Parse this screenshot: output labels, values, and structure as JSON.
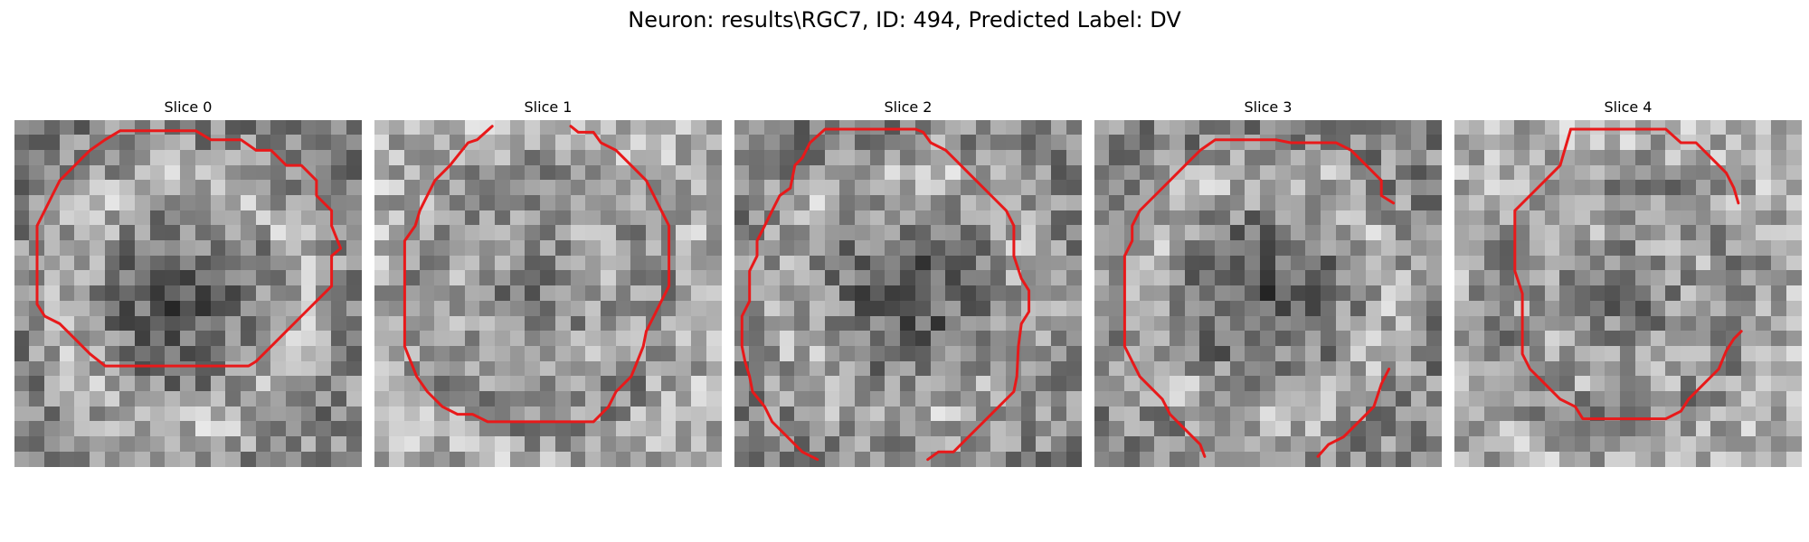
{
  "figure": {
    "title": "Neuron: results\\RGC7, ID: 494, Predicted Label: DV"
  },
  "contour_color": "#e8191a",
  "panels": [
    {
      "title": "Slice 0",
      "ring": "bright",
      "contours": [
        [
          [
            7,
            0.7
          ],
          [
            12,
            0.7
          ],
          [
            13,
            1.3
          ],
          [
            15,
            1.3
          ],
          [
            16,
            2.0
          ],
          [
            17,
            2.0
          ],
          [
            18,
            3.0
          ],
          [
            19,
            3.0
          ],
          [
            20,
            4.0
          ],
          [
            20,
            5.0
          ],
          [
            21,
            6.0
          ],
          [
            21,
            7.0
          ],
          [
            21.6,
            8.5
          ],
          [
            21,
            9.0
          ],
          [
            21,
            11.0
          ],
          [
            20,
            12.0
          ],
          [
            19,
            13.0
          ],
          [
            18,
            14.0
          ],
          [
            17,
            15.0
          ],
          [
            16,
            16.0
          ],
          [
            15.5,
            16.3
          ],
          [
            15,
            16.3
          ],
          [
            13,
            16.3
          ],
          [
            11,
            16.3
          ],
          [
            9,
            16.3
          ],
          [
            7,
            16.3
          ],
          [
            6,
            16.3
          ],
          [
            5,
            15.5
          ],
          [
            4,
            14.5
          ],
          [
            3,
            13.5
          ],
          [
            2,
            13.0
          ],
          [
            1.5,
            12.2
          ],
          [
            1.5,
            11.0
          ],
          [
            1.5,
            9.0
          ],
          [
            1.5,
            7.0
          ],
          [
            2,
            6.0
          ],
          [
            2.5,
            5.0
          ],
          [
            3,
            4.0
          ],
          [
            4,
            3.0
          ],
          [
            4.5,
            2.5
          ],
          [
            5,
            2.0
          ],
          [
            6,
            1.3
          ],
          [
            7,
            0.7
          ]
        ]
      ]
    },
    {
      "title": "Slice 1",
      "ring": "dark",
      "contours": [
        [
          [
            7.8,
            0.4
          ],
          [
            6.8,
            1.3
          ],
          [
            6.2,
            1.5
          ],
          [
            5,
            3.0
          ],
          [
            4,
            4.0
          ],
          [
            3.5,
            5.0
          ],
          [
            3,
            6.0
          ],
          [
            2.7,
            7.0
          ],
          [
            2,
            8.0
          ],
          [
            2,
            9.0
          ],
          [
            2,
            11.0
          ],
          [
            2,
            13.0
          ],
          [
            2,
            15.0
          ],
          [
            2.8,
            17.0
          ],
          [
            3.5,
            18.0
          ],
          [
            4.5,
            19.0
          ],
          [
            5.5,
            19.5
          ],
          [
            6.5,
            19.5
          ],
          [
            7.5,
            20.0
          ],
          [
            9,
            20.0
          ],
          [
            11,
            20.0
          ],
          [
            13,
            20.0
          ],
          [
            14.5,
            20.0
          ],
          [
            15.5,
            19.0
          ],
          [
            16,
            18.0
          ],
          [
            17,
            17.0
          ],
          [
            17.2,
            16.5
          ],
          [
            17.8,
            15.0
          ],
          [
            18,
            14.0
          ],
          [
            18.5,
            13.0
          ],
          [
            19,
            12.0
          ],
          [
            19.5,
            11.0
          ],
          [
            19.5,
            9.0
          ],
          [
            19.5,
            7.0
          ],
          [
            19,
            6.0
          ],
          [
            18.5,
            5.0
          ],
          [
            18,
            4.0
          ],
          [
            17,
            3.0
          ],
          [
            16,
            2.0
          ],
          [
            15,
            1.5
          ],
          [
            14.5,
            0.8
          ],
          [
            13.5,
            0.8
          ],
          [
            13,
            0.4
          ]
        ]
      ]
    },
    {
      "title": "Slice 2",
      "ring": "bright",
      "contours": [
        [
          [
            3.7,
            4.5
          ],
          [
            3,
            5.0
          ],
          [
            2.5,
            6.0
          ],
          [
            2,
            7.0
          ],
          [
            1.5,
            8.0
          ],
          [
            1.5,
            9.0
          ],
          [
            1,
            10.0
          ],
          [
            1,
            12.0
          ],
          [
            0.5,
            13.0
          ],
          [
            0.5,
            15.0
          ],
          [
            0.7,
            16.0
          ],
          [
            1,
            17.0
          ],
          [
            1.2,
            18.0
          ],
          [
            2,
            19.0
          ],
          [
            2.5,
            20.0
          ],
          [
            3.5,
            21.0
          ],
          [
            4.5,
            22.0
          ],
          [
            5.5,
            22.5
          ]
        ],
        [
          [
            12.8,
            22.5
          ],
          [
            13.5,
            22.0
          ],
          [
            14.5,
            22.0
          ],
          [
            15.5,
            21.0
          ],
          [
            16.5,
            20.0
          ],
          [
            17.5,
            19.0
          ],
          [
            18.5,
            18.0
          ],
          [
            18.7,
            17.0
          ],
          [
            18.8,
            15.0
          ],
          [
            19,
            13.5
          ],
          [
            19.5,
            12.7
          ],
          [
            19.5,
            11.3
          ],
          [
            19,
            10.5
          ],
          [
            18.5,
            9.0
          ],
          [
            18.5,
            7.0
          ],
          [
            18,
            6.0
          ],
          [
            17,
            5.0
          ],
          [
            16,
            4.0
          ],
          [
            15,
            3.0
          ],
          [
            14,
            2.0
          ],
          [
            13,
            1.5
          ],
          [
            12.5,
            0.8
          ],
          [
            12,
            0.6
          ],
          [
            10,
            0.6
          ],
          [
            8,
            0.6
          ],
          [
            6,
            0.6
          ],
          [
            5,
            1.5
          ],
          [
            4.5,
            2.5
          ],
          [
            4,
            3.0
          ],
          [
            3.7,
            4.5
          ]
        ]
      ]
    },
    {
      "title": "Slice 3",
      "ring": "bright",
      "contours": [
        [
          [
            19.8,
            5.5
          ],
          [
            19,
            5.0
          ],
          [
            19,
            4.0
          ],
          [
            18,
            3.0
          ],
          [
            17,
            2.0
          ],
          [
            16,
            1.5
          ],
          [
            15,
            1.5
          ],
          [
            14,
            1.5
          ],
          [
            13,
            1.5
          ],
          [
            12,
            1.3
          ],
          [
            10,
            1.3
          ],
          [
            8,
            1.3
          ],
          [
            7,
            2.0
          ],
          [
            6,
            3.0
          ],
          [
            5,
            4.0
          ],
          [
            4,
            5.0
          ],
          [
            3,
            6.0
          ],
          [
            2.5,
            7.0
          ],
          [
            2.5,
            8.0
          ],
          [
            2,
            9.0
          ],
          [
            2,
            11.0
          ],
          [
            2,
            13.0
          ],
          [
            2,
            15.0
          ],
          [
            2.5,
            16.0
          ],
          [
            3,
            17.0
          ],
          [
            3.5,
            17.5
          ],
          [
            4.5,
            18.5
          ],
          [
            5,
            19.5
          ],
          [
            6,
            20.5
          ],
          [
            7,
            21.5
          ],
          [
            7.3,
            22.3
          ]
        ],
        [
          [
            14.8,
            22.3
          ],
          [
            15.5,
            21.5
          ],
          [
            16.5,
            21.0
          ],
          [
            17.5,
            20.0
          ],
          [
            18.5,
            19.0
          ],
          [
            19,
            17.5
          ],
          [
            19.5,
            16.5
          ]
        ]
      ]
    },
    {
      "title": "Slice 4",
      "ring": "dark",
      "contours": [
        [
          [
            7.7,
            0.6
          ],
          [
            10,
            0.6
          ],
          [
            12,
            0.6
          ],
          [
            14,
            0.6
          ],
          [
            15,
            1.5
          ],
          [
            16,
            1.5
          ],
          [
            17,
            2.5
          ],
          [
            18,
            3.5
          ],
          [
            18.5,
            4.5
          ],
          [
            18.8,
            5.5
          ]
        ],
        [
          [
            19,
            14.0
          ],
          [
            18.5,
            14.5
          ],
          [
            18,
            15.3
          ],
          [
            17.5,
            16.5
          ],
          [
            16.5,
            17.5
          ],
          [
            15.5,
            18.5
          ],
          [
            15,
            19.3
          ],
          [
            14,
            19.8
          ],
          [
            12,
            19.8
          ],
          [
            10,
            19.8
          ],
          [
            8.5,
            19.8
          ],
          [
            8,
            19.0
          ],
          [
            7,
            18.5
          ],
          [
            6,
            17.5
          ],
          [
            5,
            16.5
          ],
          [
            4.5,
            15.5
          ],
          [
            4.5,
            13.5
          ],
          [
            4.5,
            11.5
          ],
          [
            4,
            10.0
          ],
          [
            4,
            8.0
          ],
          [
            4,
            6.0
          ],
          [
            5,
            5.0
          ],
          [
            6,
            4.0
          ],
          [
            7,
            3.0
          ],
          [
            7.7,
            0.6
          ]
        ]
      ]
    }
  ]
}
